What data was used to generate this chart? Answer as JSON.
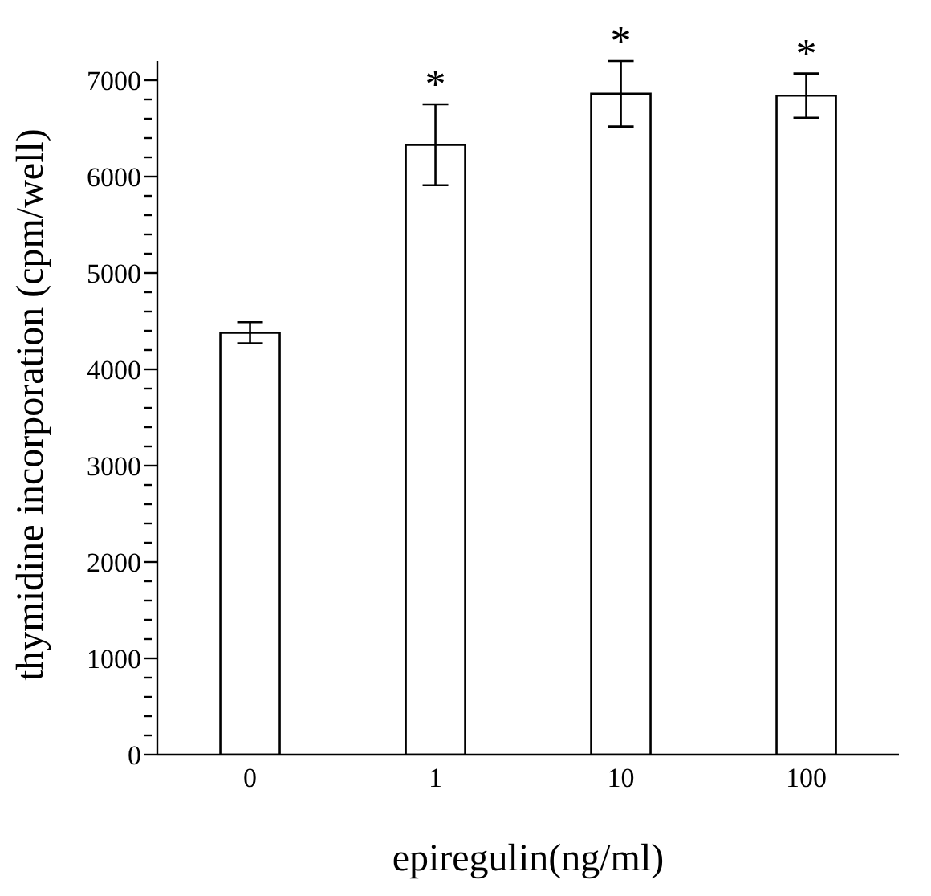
{
  "chart_data": {
    "type": "bar",
    "xlabel": "epiregulin(ng/ml)",
    "ylabel": "thymidine incorporation (cpm/well)",
    "categories": [
      "0",
      "1",
      "10",
      "100"
    ],
    "values": [
      4380,
      6330,
      6860,
      6840
    ],
    "errors": [
      110,
      420,
      340,
      230
    ],
    "color": "#ffffff",
    "ylim": [
      0,
      7200
    ],
    "yticks": [
      0,
      {
        "value": 200,
        "label": null
      },
      {
        "value": 400,
        "label": null
      },
      {
        "value": 600,
        "label": null
      },
      {
        "value": 800,
        "label": null
      },
      1000,
      {
        "value": 1200,
        "label": null
      },
      {
        "value": 1400,
        "label": null
      },
      {
        "value": 1600,
        "label": null
      },
      {
        "value": 1800,
        "label": null
      },
      2000,
      {
        "value": 2200,
        "label": null
      },
      {
        "value": 2400,
        "label": null
      },
      {
        "value": 2600,
        "label": null
      },
      {
        "value": 2800,
        "label": null
      },
      3000,
      {
        "value": 3200,
        "label": null
      },
      {
        "value": 3400,
        "label": null
      },
      {
        "value": 3600,
        "label": null
      },
      {
        "value": 3800,
        "label": null
      },
      4000,
      {
        "value": 4200,
        "label": null
      },
      {
        "value": 4400,
        "label": null
      },
      {
        "value": 4600,
        "label": null
      },
      {
        "value": 4800,
        "label": null
      },
      5000,
      {
        "value": 5200,
        "label": null
      },
      {
        "value": 5400,
        "label": null
      },
      {
        "value": 5600,
        "label": null
      },
      {
        "value": 5800,
        "label": null
      },
      6000,
      {
        "value": 6200,
        "label": null
      },
      {
        "value": 6400,
        "label": null
      },
      {
        "value": 6600,
        "label": null
      },
      {
        "value": 6800,
        "label": null
      },
      7000
    ],
    "annotations": [
      {
        "text": "*",
        "x": "1",
        "y": 6750
      },
      {
        "text": "*",
        "x": "10",
        "y": 7200
      },
      {
        "text": "*",
        "x": "100",
        "y": 7070
      }
    ],
    "grid": false,
    "legend": false
  }
}
